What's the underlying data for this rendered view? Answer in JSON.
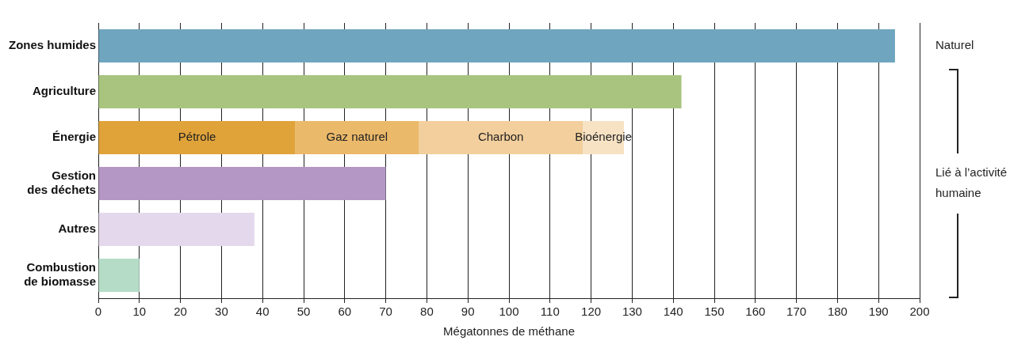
{
  "chart_data": {
    "type": "bar",
    "orientation": "horizontal",
    "stacked": true,
    "xlabel": "Mégatonnes de méthane",
    "categories": [
      "Zones humides",
      "Agriculture",
      "Énergie",
      "Gestion des déchets",
      "Autres",
      "Combustion de biomasse"
    ],
    "series": [
      {
        "colors": [
          "#6fa5be",
          "#a9c47f",
          null,
          "#b497c4",
          "#e4d9ec",
          "#b5dcc7"
        ],
        "values": [
          194,
          142,
          null,
          70,
          38,
          10
        ]
      },
      {
        "name": "Pétrole",
        "color": "#e0a33a",
        "values": [
          null,
          null,
          48,
          null,
          null,
          null
        ]
      },
      {
        "name": "Gaz naturel",
        "color": "#ebb96a",
        "values": [
          null,
          null,
          30,
          null,
          null,
          null
        ]
      },
      {
        "name": "Charbon",
        "color": "#f2cf9c",
        "values": [
          null,
          null,
          40,
          null,
          null,
          null
        ]
      },
      {
        "name": "Bioénergie",
        "color": "#f7e2c4",
        "values": [
          null,
          null,
          10,
          null,
          null,
          null
        ]
      }
    ],
    "xlim": [
      0,
      200
    ],
    "xticks": [
      0,
      10,
      20,
      30,
      40,
      50,
      60,
      70,
      80,
      90,
      100,
      110,
      120,
      130,
      140,
      150,
      160,
      170,
      180,
      190,
      200
    ],
    "grid": "x",
    "legend": false,
    "annotations": [
      "Naturel",
      "Lié à l’activité humaine"
    ]
  }
}
